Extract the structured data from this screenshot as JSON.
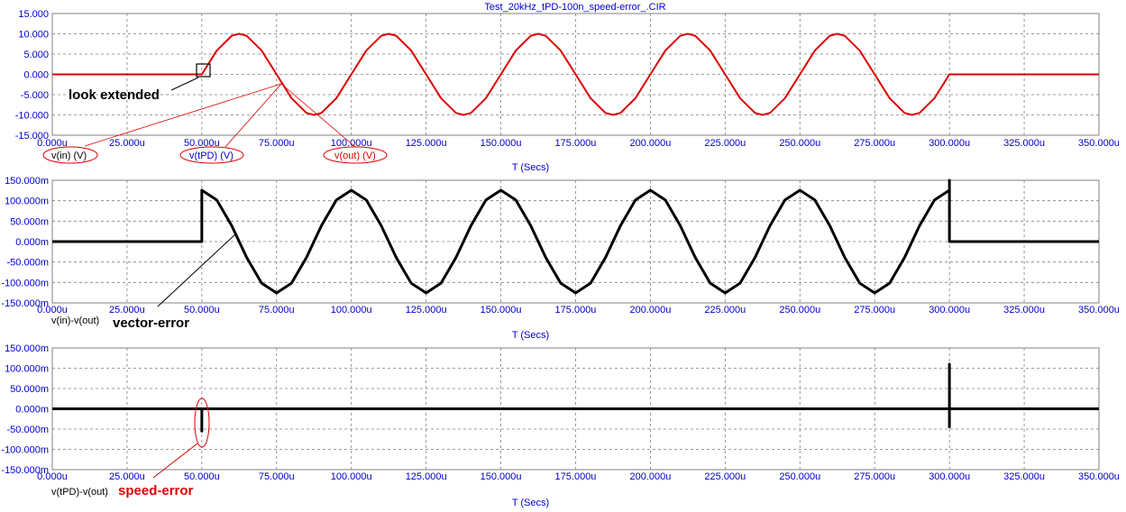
{
  "window_title": "Test_20kHz_tPD-100n_speed-error_.CIR",
  "colors": {
    "axis_text": "#0000cc",
    "trace_red": "#dd0000",
    "trace_black": "#000000",
    "grid": "#7f7f7f"
  },
  "chart_data": [
    {
      "type": "line",
      "title": "Test_20kHz_tPD-100n_speed-error_.CIR",
      "xlabel": "T (Secs)",
      "x_unit": "u",
      "xlim": [
        0,
        350
      ],
      "ylim": [
        -15,
        15
      ],
      "x_tick_labels": [
        "0.000u",
        "25.000u",
        "50.000u",
        "75.000u",
        "100.000u",
        "125.000u",
        "150.000u",
        "175.000u",
        "200.000u",
        "225.000u",
        "250.000u",
        "275.000u",
        "300.000u",
        "325.000u",
        "350.000u"
      ],
      "y_tick_labels": [
        "15.000",
        "10.000",
        "5.000",
        "0.000",
        "-5.000",
        "-10.000",
        "-15.000"
      ],
      "y_ticks": [
        15,
        10,
        5,
        0,
        -5,
        -10,
        -15
      ],
      "grid": true,
      "legend": [
        "v(in) (V)",
        "v(tPD) (V)",
        "v(out) (V)"
      ],
      "series": [
        {
          "name": "v(in) (V)",
          "color": "#dd0000",
          "x": [
            0,
            50,
            55,
            60,
            62.5,
            65,
            70,
            75,
            80,
            85,
            87.5,
            90,
            95,
            100,
            105,
            110,
            112.5,
            115,
            120,
            125,
            130,
            135,
            137.5,
            140,
            145,
            150,
            155,
            160,
            162.5,
            165,
            170,
            175,
            180,
            185,
            187.5,
            190,
            195,
            200,
            205,
            210,
            212.5,
            215,
            220,
            225,
            230,
            235,
            237.5,
            240,
            245,
            250,
            255,
            260,
            262.5,
            265,
            270,
            275,
            280,
            285,
            287.5,
            290,
            295,
            300,
            350
          ],
          "y": [
            0,
            0,
            5.878,
            9.511,
            10,
            9.511,
            5.878,
            0,
            -5.878,
            -9.511,
            -10,
            -9.511,
            -5.878,
            0,
            5.878,
            9.511,
            10,
            9.511,
            5.878,
            0,
            -5.878,
            -9.511,
            -10,
            -9.511,
            -5.878,
            0,
            5.878,
            9.511,
            10,
            9.511,
            5.878,
            0,
            -5.878,
            -9.511,
            -10,
            -9.511,
            -5.878,
            0,
            5.878,
            9.511,
            10,
            9.511,
            5.878,
            0,
            -5.878,
            -9.511,
            -10,
            -9.511,
            -5.878,
            0,
            5.878,
            9.511,
            10,
            9.511,
            5.878,
            0,
            -5.878,
            -9.511,
            -10,
            -9.511,
            -5.878,
            0,
            0
          ]
        }
      ],
      "annotations": [
        "look extended"
      ]
    },
    {
      "type": "line",
      "xlabel": "T (Secs)",
      "x_unit": "u",
      "xlim": [
        0,
        350
      ],
      "ylim": [
        -150,
        150
      ],
      "x_tick_labels": [
        "0.000u",
        "25.000u",
        "50.000u",
        "75.000u",
        "100.000u",
        "125.000u",
        "150.000u",
        "175.000u",
        "200.000u",
        "225.000u",
        "250.000u",
        "275.000u",
        "300.000u",
        "325.000u",
        "350.000u"
      ],
      "y_tick_labels": [
        "150.000m",
        "100.000m",
        "50.000m",
        "0.000m",
        "-50.000m",
        "-100.000m",
        "-150.000m"
      ],
      "y_ticks": [
        150,
        100,
        50,
        0,
        -50,
        -100,
        -150
      ],
      "grid": true,
      "legend": [
        "v(in)-v(out)"
      ],
      "series": [
        {
          "name": "v(in)-v(out)",
          "color": "#000000",
          "x": [
            0,
            50,
            50,
            50,
            55,
            60,
            62.5,
            65,
            70,
            75,
            80,
            85,
            87.5,
            90,
            95,
            100,
            105,
            110,
            112.5,
            115,
            120,
            125,
            130,
            135,
            137.5,
            140,
            145,
            150,
            155,
            160,
            162.5,
            165,
            170,
            175,
            180,
            185,
            187.5,
            190,
            195,
            200,
            205,
            210,
            212.5,
            215,
            220,
            225,
            230,
            235,
            237.5,
            240,
            245,
            250,
            255,
            260,
            262.5,
            265,
            270,
            275,
            280,
            285,
            287.5,
            290,
            295,
            300,
            300,
            300,
            350
          ],
          "y": [
            0,
            0,
            95,
            125.7,
            101.7,
            38.9,
            0,
            -38.9,
            -101.7,
            -125.7,
            -101.7,
            -38.9,
            0,
            38.9,
            101.7,
            125.7,
            101.7,
            38.9,
            0,
            -38.9,
            -101.7,
            -125.7,
            -101.7,
            -38.9,
            0,
            38.9,
            101.7,
            125.7,
            101.7,
            38.9,
            0,
            -38.9,
            -101.7,
            -125.7,
            -101.7,
            -38.9,
            0,
            38.9,
            101.7,
            125.7,
            101.7,
            38.9,
            0,
            -38.9,
            -101.7,
            -125.7,
            -101.7,
            -38.9,
            0,
            38.9,
            101.7,
            125.7,
            101.7,
            38.9,
            0,
            -38.9,
            -101.7,
            -125.7,
            -101.7,
            -38.9,
            0,
            38.9,
            101.7,
            125.7,
            150,
            0,
            0
          ]
        }
      ],
      "annotations": [
        "vector-error"
      ]
    },
    {
      "type": "line",
      "xlabel": "T (Secs)",
      "x_unit": "u",
      "xlim": [
        0,
        350
      ],
      "ylim": [
        -150,
        150
      ],
      "x_tick_labels": [
        "0.000u",
        "25.000u",
        "50.000u",
        "75.000u",
        "100.000u",
        "125.000u",
        "150.000u",
        "175.000u",
        "200.000u",
        "225.000u",
        "250.000u",
        "275.000u",
        "300.000u",
        "325.000u",
        "350.000u"
      ],
      "y_tick_labels": [
        "150.000m",
        "100.000m",
        "50.000m",
        "0.000m",
        "-50.000m",
        "-100.000m",
        "-150.000m"
      ],
      "y_ticks": [
        150,
        100,
        50,
        0,
        -50,
        -100,
        -150
      ],
      "grid": true,
      "legend": [
        "v(tPD)-v(out)"
      ],
      "series": [
        {
          "name": "v(tPD)-v(out)",
          "color": "#000000",
          "x": [
            0,
            50,
            50,
            50,
            50,
            50,
            300,
            300,
            300,
            300,
            350
          ],
          "y": [
            0,
            0,
            -10,
            -55,
            -10,
            0,
            0,
            110,
            -45,
            0,
            0
          ]
        }
      ],
      "annotations": [
        "speed-error"
      ]
    }
  ]
}
